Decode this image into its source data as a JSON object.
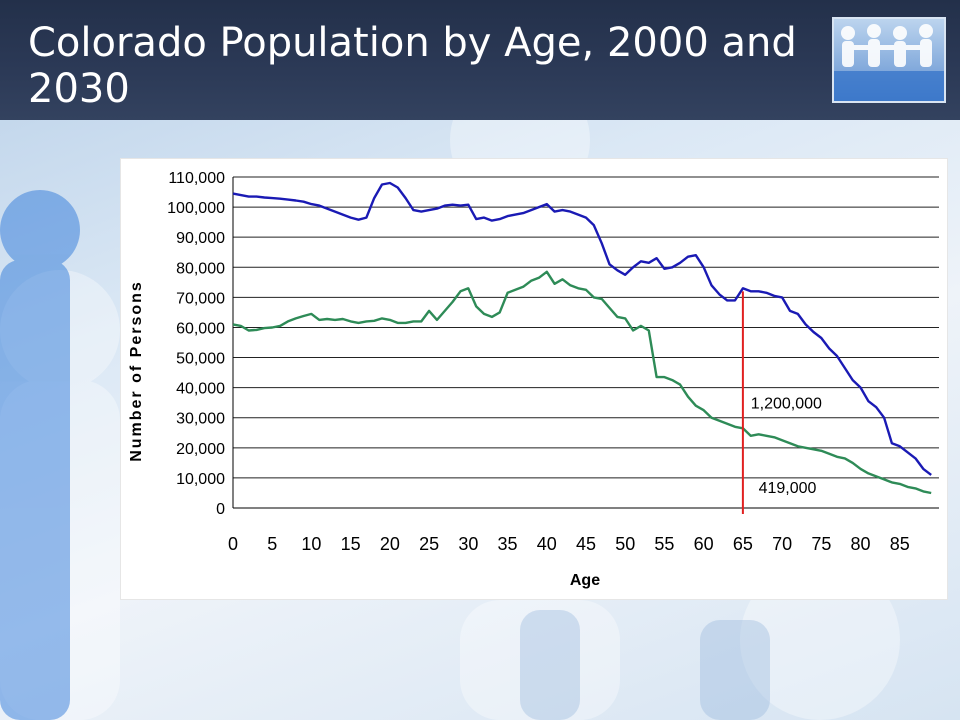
{
  "slide": {
    "title": "Colorado Population by Age, 2000 and 2030"
  },
  "icons": {
    "logo": "people-chain-logo-icon"
  },
  "colors": {
    "series_2000": "#1a1ab4",
    "series_2030": "#2e8b57",
    "marker_line": "#e02020",
    "title_bar": "#2c3a57"
  },
  "chart_data": {
    "type": "line",
    "xlabel": "Age",
    "ylabel": "Number of Persons",
    "xlim": [
      0,
      90
    ],
    "ylim": [
      0,
      110000
    ],
    "x_ticks": [
      0,
      5,
      10,
      15,
      20,
      25,
      30,
      35,
      40,
      45,
      50,
      55,
      60,
      65,
      70,
      75,
      80,
      85
    ],
    "y_ticks": [
      0,
      10000,
      20000,
      30000,
      40000,
      50000,
      60000,
      70000,
      80000,
      90000,
      100000,
      110000
    ],
    "y_tick_labels": [
      "0",
      "10,000",
      "20,000",
      "30,000",
      "40,000",
      "50,000",
      "60,000",
      "70,000",
      "80,000",
      "90,000",
      "100,000",
      "110,000"
    ],
    "grid": "horizontal",
    "reference_line_x": 65,
    "annotations": [
      {
        "text": "1,200,000",
        "x": 66,
        "y": 33000
      },
      {
        "text": "419,000",
        "x": 67,
        "y": 5000
      }
    ],
    "series": [
      {
        "key": "upper",
        "points": [
          [
            0,
            104500
          ],
          [
            1,
            104000
          ],
          [
            2,
            103500
          ],
          [
            3,
            103500
          ],
          [
            4,
            103200
          ],
          [
            5,
            103000
          ],
          [
            6,
            102800
          ],
          [
            7,
            102500
          ],
          [
            8,
            102200
          ],
          [
            9,
            101800
          ],
          [
            10,
            101000
          ],
          [
            11,
            100500
          ],
          [
            12,
            99500
          ],
          [
            13,
            98500
          ],
          [
            14,
            97500
          ],
          [
            15,
            96500
          ],
          [
            16,
            95800
          ],
          [
            17,
            96500
          ],
          [
            18,
            103000
          ],
          [
            19,
            107500
          ],
          [
            20,
            108000
          ],
          [
            21,
            106500
          ],
          [
            22,
            103000
          ],
          [
            23,
            99000
          ],
          [
            24,
            98500
          ],
          [
            25,
            99000
          ],
          [
            26,
            99500
          ],
          [
            27,
            100500
          ],
          [
            28,
            100800
          ],
          [
            29,
            100500
          ],
          [
            30,
            100800
          ],
          [
            31,
            96000
          ],
          [
            32,
            96500
          ],
          [
            33,
            95500
          ],
          [
            34,
            96000
          ],
          [
            35,
            97000
          ],
          [
            36,
            97500
          ],
          [
            37,
            98000
          ],
          [
            38,
            99000
          ],
          [
            39,
            100000
          ],
          [
            40,
            101000
          ],
          [
            41,
            98500
          ],
          [
            42,
            99000
          ],
          [
            43,
            98500
          ],
          [
            44,
            97500
          ],
          [
            45,
            96500
          ],
          [
            46,
            94000
          ],
          [
            47,
            88000
          ],
          [
            48,
            81000
          ],
          [
            49,
            79000
          ],
          [
            50,
            77500
          ],
          [
            51,
            80000
          ],
          [
            52,
            82000
          ],
          [
            53,
            81500
          ],
          [
            54,
            83000
          ],
          [
            55,
            79500
          ],
          [
            56,
            80000
          ],
          [
            57,
            81500
          ],
          [
            58,
            83500
          ],
          [
            59,
            84000
          ],
          [
            60,
            80000
          ],
          [
            61,
            74000
          ],
          [
            62,
            71000
          ],
          [
            63,
            69000
          ],
          [
            64,
            69000
          ],
          [
            65,
            73000
          ],
          [
            66,
            72000
          ],
          [
            67,
            72000
          ],
          [
            68,
            71500
          ],
          [
            69,
            70500
          ],
          [
            70,
            70000
          ],
          [
            71,
            65500
          ],
          [
            72,
            64500
          ],
          [
            73,
            61000
          ],
          [
            74,
            58500
          ],
          [
            75,
            56500
          ],
          [
            76,
            53000
          ],
          [
            77,
            50500
          ],
          [
            78,
            46500
          ],
          [
            79,
            42500
          ],
          [
            80,
            40000
          ],
          [
            81,
            35500
          ],
          [
            82,
            33500
          ],
          [
            83,
            30000
          ],
          [
            84,
            21500
          ],
          [
            85,
            20500
          ],
          [
            86,
            18500
          ],
          [
            87,
            16500
          ],
          [
            88,
            13000
          ],
          [
            89,
            11000
          ]
        ]
      },
      {
        "key": "lower",
        "points": [
          [
            0,
            61000
          ],
          [
            1,
            60500
          ],
          [
            2,
            59000
          ],
          [
            3,
            59200
          ],
          [
            4,
            59800
          ],
          [
            5,
            60000
          ],
          [
            6,
            60500
          ],
          [
            7,
            62000
          ],
          [
            8,
            63000
          ],
          [
            9,
            63800
          ],
          [
            10,
            64500
          ],
          [
            11,
            62500
          ],
          [
            12,
            62800
          ],
          [
            13,
            62500
          ],
          [
            14,
            62800
          ],
          [
            15,
            62000
          ],
          [
            16,
            61500
          ],
          [
            17,
            62000
          ],
          [
            18,
            62200
          ],
          [
            19,
            63000
          ],
          [
            20,
            62500
          ],
          [
            21,
            61500
          ],
          [
            22,
            61500
          ],
          [
            23,
            62000
          ],
          [
            24,
            62000
          ],
          [
            25,
            65500
          ],
          [
            26,
            62500
          ],
          [
            27,
            65500
          ],
          [
            28,
            68500
          ],
          [
            29,
            72000
          ],
          [
            30,
            73000
          ],
          [
            31,
            67000
          ],
          [
            32,
            64500
          ],
          [
            33,
            63500
          ],
          [
            34,
            65000
          ],
          [
            35,
            71500
          ],
          [
            36,
            72500
          ],
          [
            37,
            73500
          ],
          [
            38,
            75500
          ],
          [
            39,
            76500
          ],
          [
            40,
            78500
          ],
          [
            41,
            74500
          ],
          [
            42,
            76000
          ],
          [
            43,
            74000
          ],
          [
            44,
            73000
          ],
          [
            45,
            72500
          ],
          [
            46,
            70000
          ],
          [
            47,
            69500
          ],
          [
            48,
            66500
          ],
          [
            49,
            63500
          ],
          [
            50,
            63000
          ],
          [
            51,
            59000
          ],
          [
            52,
            60500
          ],
          [
            53,
            59000
          ],
          [
            54,
            43500
          ],
          [
            55,
            43500
          ],
          [
            56,
            42500
          ],
          [
            57,
            41000
          ],
          [
            58,
            37000
          ],
          [
            59,
            34000
          ],
          [
            60,
            32500
          ],
          [
            61,
            30000
          ],
          [
            62,
            29000
          ],
          [
            63,
            28000
          ],
          [
            64,
            27000
          ],
          [
            65,
            26500
          ],
          [
            66,
            24000
          ],
          [
            67,
            24500
          ],
          [
            68,
            24000
          ],
          [
            69,
            23500
          ],
          [
            70,
            22500
          ],
          [
            71,
            21500
          ],
          [
            72,
            20500
          ],
          [
            73,
            20000
          ],
          [
            74,
            19500
          ],
          [
            75,
            19000
          ],
          [
            76,
            18000
          ],
          [
            77,
            17000
          ],
          [
            78,
            16500
          ],
          [
            79,
            15000
          ],
          [
            80,
            13000
          ],
          [
            81,
            11500
          ],
          [
            82,
            10500
          ],
          [
            83,
            9500
          ],
          [
            84,
            8500
          ],
          [
            85,
            8000
          ],
          [
            86,
            7000
          ],
          [
            87,
            6500
          ],
          [
            88,
            5500
          ],
          [
            89,
            5000
          ]
        ]
      }
    ]
  }
}
